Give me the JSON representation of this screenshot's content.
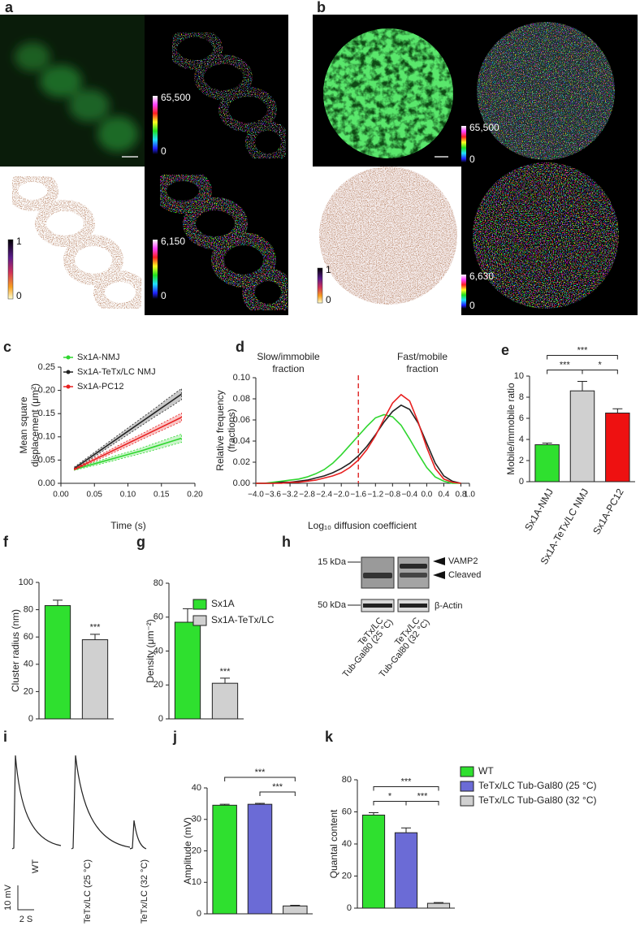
{
  "panel_labels": [
    "a",
    "b",
    "c",
    "d",
    "e",
    "f",
    "g",
    "h",
    "i",
    "j",
    "k"
  ],
  "image_panels": [
    {
      "colorbars": [
        {
          "max": "65,500",
          "min": "0"
        },
        {
          "max": "1",
          "min": "0"
        },
        {
          "max": "6,150",
          "min": "0"
        }
      ]
    },
    {
      "colorbars": [
        {
          "max": "65,500",
          "min": "0"
        },
        {
          "max": "1",
          "min": "0"
        },
        {
          "max": "6,630",
          "min": "0"
        }
      ]
    }
  ],
  "blot": {
    "markers": [
      "15 kDa",
      "50 kDa"
    ],
    "bands": [
      "VAMP2",
      "Cleaved",
      "β-Actin"
    ],
    "lanes": [
      [
        "TeTx/LC",
        "Tub-Gal80 (25 °C)"
      ],
      [
        "TeTx/LC",
        "Tub-Gal80 (32 °C)"
      ]
    ]
  },
  "traces": {
    "labels": [
      "WT",
      "TeTx/LC (25 °C)",
      "TeTx/LC (32 °C)"
    ],
    "scale": [
      "10 mV",
      "2 S"
    ]
  },
  "chart_data": [
    {
      "type": "line",
      "ylabel": [
        "Mean square",
        "displacement (μm²)"
      ],
      "xlabel": "Time (s)",
      "x": [
        0.02,
        0.04,
        0.06,
        0.08,
        0.1,
        0.12,
        0.14,
        0.16,
        0.18
      ],
      "series": [
        {
          "name": "Sx1A-NMJ",
          "color": "#2fd62f",
          "values": [
            0.03,
            0.038,
            0.046,
            0.054,
            0.062,
            0.07,
            0.079,
            0.088,
            0.097
          ],
          "errors": [
            0.002,
            0.003,
            0.004,
            0.005,
            0.005,
            0.006,
            0.007,
            0.008,
            0.009
          ]
        },
        {
          "name": "Sx1A-TeTx/LC NMJ",
          "color": "#222222",
          "values": [
            0.032,
            0.052,
            0.072,
            0.092,
            0.112,
            0.132,
            0.152,
            0.172,
            0.192
          ],
          "errors": [
            0.003,
            0.004,
            0.005,
            0.006,
            0.007,
            0.008,
            0.009,
            0.011,
            0.012
          ]
        },
        {
          "name": "Sx1A-PC12",
          "color": "#e82020",
          "values": [
            0.03,
            0.044,
            0.058,
            0.072,
            0.086,
            0.1,
            0.114,
            0.128,
            0.142
          ],
          "errors": [
            0.002,
            0.003,
            0.004,
            0.005,
            0.006,
            0.006,
            0.007,
            0.008,
            0.009
          ]
        }
      ],
      "xlim": [
        0,
        0.2
      ],
      "xticks": [
        {
          "value": 0,
          "label": "0.00"
        },
        {
          "value": 0.05,
          "label": "0.05"
        },
        {
          "value": 0.1,
          "label": "0.10"
        },
        {
          "value": 0.15,
          "label": "0.15"
        },
        {
          "value": 0.2,
          "label": "0.20"
        }
      ],
      "ylim": [
        0,
        0.25
      ],
      "yticks": [
        {
          "value": 0,
          "label": "0.00"
        },
        {
          "value": 0.05,
          "label": "0.05"
        },
        {
          "value": 0.1,
          "label": "0.10"
        },
        {
          "value": 0.15,
          "label": "0.15"
        },
        {
          "value": 0.2,
          "label": "0.20"
        },
        {
          "value": 0.25,
          "label": "0.25"
        }
      ]
    },
    {
      "type": "line",
      "ylabel": [
        "Relative frequency",
        "(fractions)"
      ],
      "xlabel": "Log₁₀ diffusion coefficient",
      "annotations": [
        [
          "Slow/immobile",
          "fraction"
        ],
        [
          "Fast/mobile",
          "fraction"
        ]
      ],
      "vline": -1.6,
      "vline_color": "#e03030",
      "x": [
        -4.0,
        -3.8,
        -3.6,
        -3.4,
        -3.2,
        -3.0,
        -2.8,
        -2.6,
        -2.4,
        -2.2,
        -2.0,
        -1.8,
        -1.6,
        -1.4,
        -1.2,
        -1.0,
        -0.8,
        -0.6,
        -0.4,
        -0.2,
        0.0,
        0.2,
        0.4,
        0.6,
        0.8
      ],
      "series": [
        {
          "name": "Sx1A-NMJ",
          "color": "#2fd62f",
          "values": [
            0,
            0,
            0.001,
            0.002,
            0.003,
            0.004,
            0.006,
            0.009,
            0.013,
            0.019,
            0.027,
            0.036,
            0.045,
            0.054,
            0.062,
            0.065,
            0.063,
            0.055,
            0.042,
            0.028,
            0.015,
            0.006,
            0.002,
            0,
            0
          ]
        },
        {
          "name": "Sx1A-TeTx/LC NMJ",
          "color": "#222222",
          "values": [
            0,
            0,
            0,
            0.001,
            0.001,
            0.002,
            0.003,
            0.005,
            0.007,
            0.01,
            0.014,
            0.019,
            0.026,
            0.035,
            0.046,
            0.058,
            0.068,
            0.074,
            0.07,
            0.057,
            0.038,
            0.019,
            0.007,
            0.002,
            0
          ]
        },
        {
          "name": "Sx1A-PC12",
          "color": "#e82020",
          "values": [
            0,
            0,
            0,
            0,
            0.001,
            0.001,
            0.002,
            0.003,
            0.005,
            0.007,
            0.01,
            0.015,
            0.022,
            0.032,
            0.045,
            0.061,
            0.076,
            0.084,
            0.078,
            0.058,
            0.034,
            0.014,
            0.004,
            0.001,
            0
          ]
        }
      ],
      "xlim": [
        -4.0,
        1.0
      ],
      "xticks": [
        {
          "value": -4.0,
          "label": "−4.0"
        },
        {
          "value": -3.6,
          "label": "−3.6"
        },
        {
          "value": -3.2,
          "label": "−3.2"
        },
        {
          "value": -2.8,
          "label": "−2.8"
        },
        {
          "value": -2.4,
          "label": "−2.4"
        },
        {
          "value": -2.0,
          "label": "−2.0"
        },
        {
          "value": -1.6,
          "label": "−1.6"
        },
        {
          "value": -1.2,
          "label": "−1.2"
        },
        {
          "value": -0.8,
          "label": "−0.8"
        },
        {
          "value": -0.4,
          "label": "−0.4"
        },
        {
          "value": 0,
          "label": "0.0"
        },
        0.4,
        0.8,
        {
          "value": 1,
          "label": "1.0"
        }
      ],
      "ylim": [
        0,
        0.1
      ],
      "yticks": [
        {
          "value": 0,
          "label": "0.00"
        },
        {
          "value": 0.02,
          "label": "0.02"
        },
        {
          "value": 0.04,
          "label": "0.04"
        },
        {
          "value": 0.06,
          "label": "0.06"
        },
        {
          "value": 0.08,
          "label": "0.08"
        },
        {
          "value": 0.1,
          "label": "0.10"
        }
      ]
    },
    {
      "type": "bar",
      "ylabel": "Mobile/immobile ratio",
      "categories": [
        "Sx1A-NMJ",
        "Sx1A-TeTx/LC NMJ",
        "Sx1A-PC12"
      ],
      "values": [
        3.5,
        8.6,
        6.5
      ],
      "errors": [
        0.15,
        0.9,
        0.4
      ],
      "colors": [
        "#2fe02f",
        "#d0d0d0",
        "#ee1111"
      ],
      "ylim": [
        0,
        10
      ],
      "yticks": [
        0,
        2,
        4,
        6,
        8,
        10
      ],
      "significance": [
        {
          "from": 0,
          "to": 2,
          "label": "***"
        },
        {
          "from": 0,
          "to": 1,
          "label": "***"
        },
        {
          "from": 1,
          "to": 2,
          "label": "*"
        }
      ]
    },
    {
      "type": "bar",
      "ylabel": "Cluster radius (nm)",
      "values": [
        83,
        58
      ],
      "errors": [
        4,
        4
      ],
      "colors": [
        "#2fe02f",
        "#d0d0d0"
      ],
      "ylim": [
        0,
        100
      ],
      "yticks": [
        0,
        20,
        40,
        60,
        80,
        100
      ],
      "significance": [
        {
          "bar": 1,
          "label": "***"
        }
      ]
    },
    {
      "type": "bar",
      "ylabel": "Density (μm⁻²)",
      "values": [
        57,
        21
      ],
      "errors": [
        8,
        3
      ],
      "colors": [
        "#2fe02f",
        "#d0d0d0"
      ],
      "legend": [
        "Sx1A",
        "Sx1A-TeTx/LC"
      ],
      "ylim": [
        0,
        80
      ],
      "yticks": [
        0,
        20,
        40,
        60,
        80
      ],
      "significance": [
        {
          "bar": 1,
          "label": "***"
        }
      ]
    },
    {
      "type": "bar",
      "ylabel": "Amplitude (mV)",
      "values": [
        34.5,
        34.8,
        2.5
      ],
      "errors": [
        0.3,
        0.3,
        0.2
      ],
      "colors": [
        "#2fe02f",
        "#6b6bd6",
        "#d0d0d0"
      ],
      "ylim": [
        0,
        40
      ],
      "yticks": [
        0,
        10,
        20,
        30,
        40
      ],
      "significance": [
        {
          "from": 0,
          "to": 2,
          "label": "***"
        },
        {
          "from": 1,
          "to": 2,
          "label": "***"
        }
      ]
    },
    {
      "type": "bar",
      "ylabel": "Quantal content",
      "values": [
        58,
        47,
        3
      ],
      "errors": [
        1.5,
        3,
        0.5
      ],
      "colors": [
        "#2fe02f",
        "#6b6bd6",
        "#d0d0d0"
      ],
      "legend": [
        "WT",
        "TeTx/LC Tub-Gal80 (25 °C)",
        "TeTx/LC Tub-Gal80 (32 °C)"
      ],
      "ylim": [
        0,
        80
      ],
      "yticks": [
        0,
        20,
        40,
        60,
        80
      ],
      "significance": [
        {
          "from": 0,
          "to": 2,
          "label": "***"
        },
        {
          "from": 0,
          "to": 1,
          "label": "*"
        },
        {
          "from": 1,
          "to": 2,
          "label": "***"
        }
      ]
    }
  ]
}
